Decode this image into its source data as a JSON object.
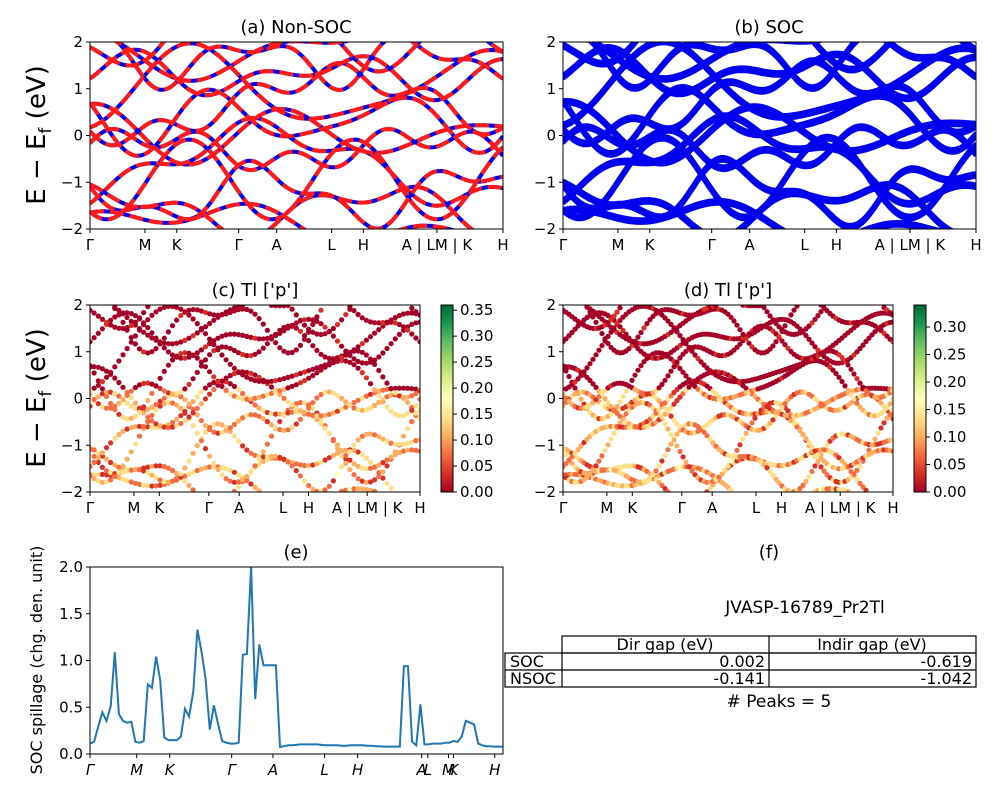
{
  "colors": {
    "nonsoc_line": "#ff1a1a",
    "soc_line": "#0000ee",
    "spillage_line": "#1f77b4",
    "cmap": "RdYlGn"
  },
  "chart_data": [
    {
      "id": "a",
      "type": "line",
      "title": "(a) Non-SOC",
      "ylabel": "E − E_f (eV)",
      "ylim": [
        -2,
        2
      ],
      "yticks": [
        "−2",
        "−1",
        "0",
        "1",
        "2"
      ],
      "kpath_labels": [
        "Γ",
        "M",
        "K",
        "Γ",
        "A",
        "L",
        "H",
        "A | LM | K",
        "H"
      ],
      "series": [
        {
          "style": "dashed-red"
        },
        {
          "style": "solid-blue"
        }
      ]
    },
    {
      "id": "b",
      "type": "line",
      "title": "(b) SOC",
      "ylim": [
        -2,
        2
      ],
      "yticks": [
        "−2",
        "−1",
        "0",
        "1",
        "2"
      ],
      "kpath_labels": [
        "Γ",
        "M",
        "K",
        "Γ",
        "A",
        "L",
        "H",
        "A | LM | K",
        "H"
      ],
      "series": [
        {
          "style": "solid-blue"
        }
      ]
    },
    {
      "id": "c",
      "type": "scatter",
      "title": "(c)  Tl ['p']",
      "ylabel": "E − E_f (eV)",
      "ylim": [
        -2,
        2
      ],
      "yticks": [
        "−2",
        "−1",
        "0",
        "1",
        "2"
      ],
      "kpath_labels": [
        "Γ",
        "M",
        "K",
        "Γ",
        "A",
        "L",
        "H",
        "A | LM | K",
        "H"
      ],
      "colorbar": {
        "range": [
          0,
          0.36
        ],
        "ticks": [
          "0.00",
          "0.05",
          "0.10",
          "0.15",
          "0.20",
          "0.25",
          "0.30",
          "0.35"
        ]
      }
    },
    {
      "id": "d",
      "type": "scatter",
      "title": "(d) Tl ['p']",
      "ylim": [
        -2,
        2
      ],
      "yticks": [
        "−2",
        "−1",
        "0",
        "1",
        "2"
      ],
      "kpath_labels": [
        "Γ",
        "M",
        "K",
        "Γ",
        "A",
        "L",
        "H",
        "A | LM | K",
        "H"
      ],
      "colorbar": {
        "range": [
          0,
          0.34
        ],
        "ticks": [
          "0.00",
          "0.05",
          "0.10",
          "0.15",
          "0.20",
          "0.25",
          "0.30"
        ]
      }
    },
    {
      "id": "e",
      "type": "line",
      "title": "(e)",
      "ylabel": "SOC spillage (chg. den. unit)",
      "ylim": [
        0,
        2.15
      ],
      "yticks": [
        "0.0",
        "0.5",
        "1.0",
        "1.5",
        "2.0"
      ],
      "xtick_labels": [
        "Γ",
        "M",
        "K",
        "Γ",
        "A",
        "L",
        "H",
        "A",
        "L",
        "M",
        "K",
        "H"
      ],
      "x": [
        0,
        1,
        2,
        3,
        4,
        5,
        6,
        7,
        8,
        9,
        10,
        11,
        12,
        13,
        14,
        15,
        16,
        17,
        18,
        19,
        20,
        21,
        22,
        23,
        24,
        25,
        26,
        27,
        28,
        29,
        30,
        31,
        32,
        33,
        34,
        35,
        36,
        37,
        38,
        39,
        40,
        41,
        42,
        43,
        44,
        45,
        46,
        47,
        48,
        49,
        50,
        51,
        52,
        53,
        54,
        55,
        56,
        57,
        58,
        59,
        60,
        61,
        62,
        63,
        64,
        65,
        66,
        67,
        68,
        69,
        70,
        71,
        72,
        73,
        74,
        75,
        76,
        77,
        78,
        79,
        80,
        81,
        82,
        83,
        84,
        85,
        86,
        87,
        88,
        89,
        90,
        91,
        92,
        93,
        94,
        95,
        96,
        97,
        98,
        99,
        100
      ],
      "values": [
        0.12,
        0.14,
        0.32,
        0.48,
        0.38,
        0.55,
        1.17,
        0.46,
        0.38,
        0.36,
        0.37,
        0.14,
        0.13,
        0.15,
        0.8,
        0.76,
        1.12,
        0.85,
        0.19,
        0.16,
        0.16,
        0.16,
        0.2,
        0.52,
        0.43,
        0.72,
        1.43,
        1.18,
        0.86,
        0.28,
        0.56,
        0.35,
        0.15,
        0.13,
        0.12,
        0.12,
        0.13,
        1.14,
        1.15,
        2.15,
        0.63,
        1.26,
        1.02,
        1.02,
        1.02,
        1.02,
        0.08,
        0.09,
        0.1,
        0.1,
        0.105,
        0.11,
        0.11,
        0.11,
        0.11,
        0.11,
        0.105,
        0.1,
        0.1,
        0.1,
        0.1,
        0.095,
        0.095,
        0.1,
        0.1,
        0.1,
        0.1,
        0.095,
        0.095,
        0.09,
        0.09,
        0.085,
        0.085,
        0.085,
        0.085,
        0.085,
        1.01,
        1.01,
        0.14,
        0.1,
        0.57,
        0.11,
        0.11,
        0.12,
        0.12,
        0.12,
        0.13,
        0.13,
        0.15,
        0.14,
        0.2,
        0.38,
        0.36,
        0.34,
        0.12,
        0.1,
        0.09,
        0.09,
        0.085,
        0.085,
        0.085
      ]
    }
  ],
  "panel_f": {
    "title": "(f)",
    "material": "JVASP-16789_Pr2Tl",
    "table": {
      "headers": [
        "Dir gap (eV)",
        "Indir gap (eV)"
      ],
      "rows": [
        {
          "label": "SOC",
          "dir": "0.002",
          "indir": "-0.619"
        },
        {
          "label": "NSOC",
          "dir": "-0.141",
          "indir": "-1.042"
        }
      ]
    },
    "peaks": "# Peaks = 5"
  }
}
